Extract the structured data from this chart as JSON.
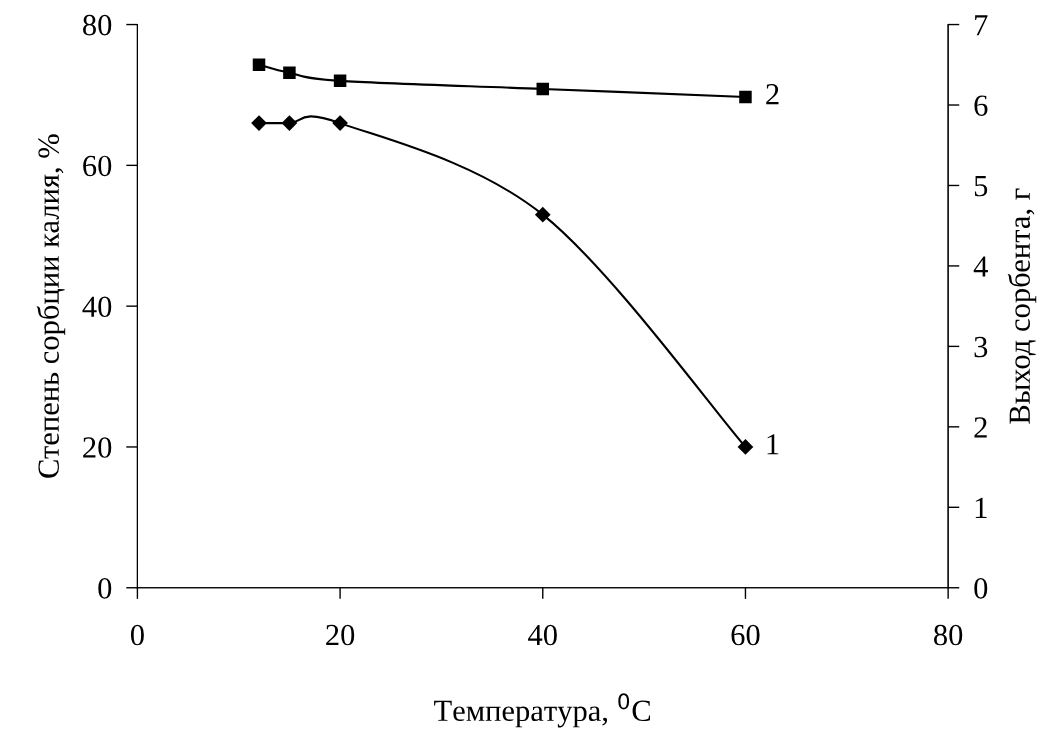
{
  "chart_data": {
    "type": "line",
    "xlabel": "Температура, $^{0}$C",
    "ylabel": "Степень сорбции калия, %",
    "y2label": "Выход сорбента, г",
    "x": [
      12,
      15,
      20,
      40,
      60
    ],
    "series": [
      {
        "name": "1",
        "color": "#000000",
        "marker": "diamond",
        "line_style": "solid",
        "values": [
          66,
          66,
          66,
          53,
          20
        ]
      },
      {
        "name": "2",
        "color": "#000000",
        "marker": "square",
        "line_style": "solid",
        "axis": "y2",
        "values": [
          6.5,
          6.4,
          6.3,
          6.2,
          6.1
        ]
      }
    ],
    "xlim": [
      0,
      80
    ],
    "xticks": [
      0,
      20,
      40,
      60,
      80
    ],
    "ylim": [
      0,
      80
    ],
    "yticks": [
      0,
      20,
      40,
      60,
      80
    ],
    "y2lim": [
      0,
      7
    ],
    "y2ticks": [
      0,
      1,
      2,
      3,
      4,
      5,
      6,
      7
    ],
    "grid": false,
    "legend": false
  }
}
